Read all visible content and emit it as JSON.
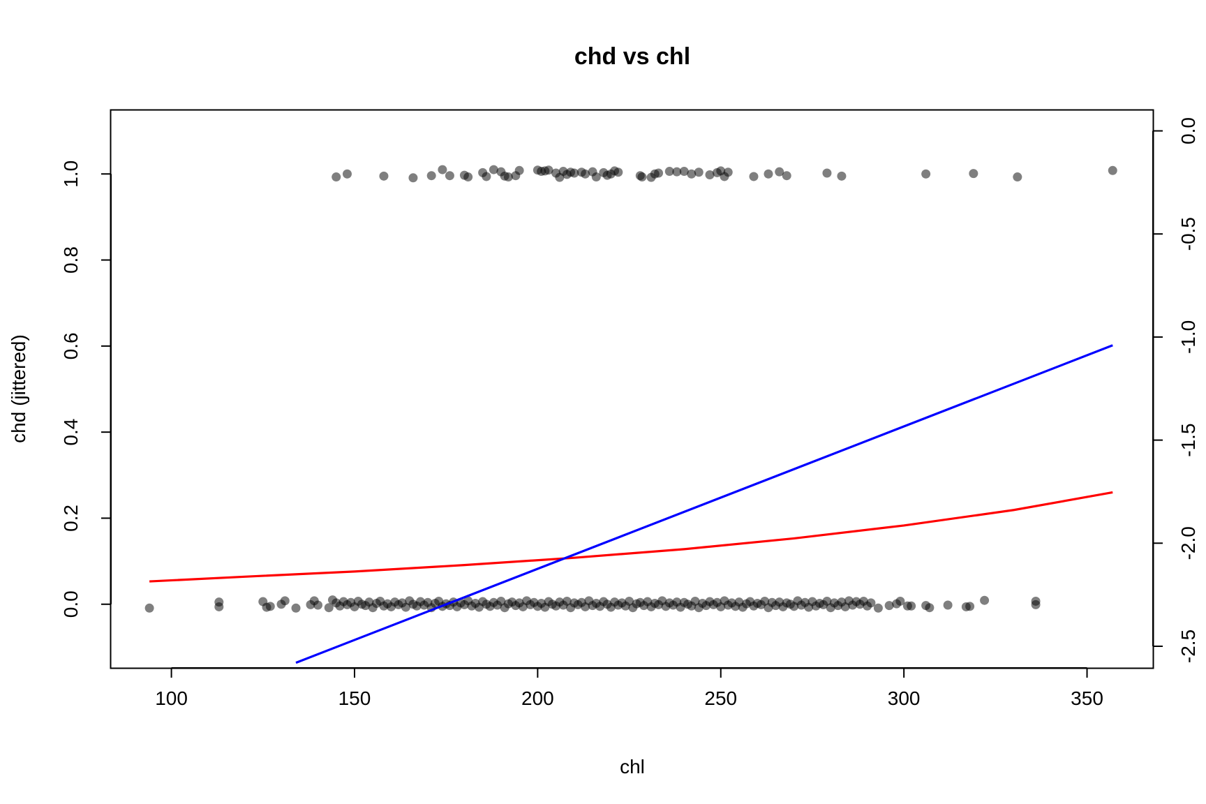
{
  "chart_data": {
    "type": "scatter",
    "title": "chd vs chl",
    "xlabel": "chl",
    "ylabel": "chd (jittered)",
    "xlim": [
      83.5,
      368
    ],
    "ylim": [
      -0.148,
      1.148
    ],
    "y2lim": [
      -2.605,
      0.1
    ],
    "x_ticks": [
      100,
      150,
      200,
      250,
      300,
      350
    ],
    "y_ticks": [
      0.0,
      0.2,
      0.4,
      0.6,
      0.8,
      1.0
    ],
    "y2_ticks": [
      0.0,
      -0.5,
      -1.0,
      -1.5,
      -2.0,
      -2.5
    ],
    "x_tick_labels": [
      "100",
      "150",
      "200",
      "250",
      "300",
      "350"
    ],
    "y_tick_labels": [
      "0.0",
      "0.2",
      "0.4",
      "0.6",
      "0.8",
      "1.0"
    ],
    "y2_tick_labels": [
      "0.0",
      "-0.5",
      "-1.0",
      "-1.5",
      "-2.0",
      "-2.5"
    ],
    "grid": false,
    "point_color": "#000000",
    "point_opacity": 0.5,
    "series": [
      {
        "values": [
          {
            "x": 145,
            "y": 0.993
          },
          {
            "x": 148,
            "y": 1.0
          },
          {
            "x": 158,
            "y": 0.995
          },
          {
            "x": 166,
            "y": 0.991
          },
          {
            "x": 171,
            "y": 0.996
          },
          {
            "x": 174,
            "y": 1.01
          },
          {
            "x": 176,
            "y": 0.996
          },
          {
            "x": 180,
            "y": 0.997
          },
          {
            "x": 181,
            "y": 0.993
          },
          {
            "x": 185,
            "y": 1.003
          },
          {
            "x": 186,
            "y": 0.994
          },
          {
            "x": 188,
            "y": 1.01
          },
          {
            "x": 190,
            "y": 1.005
          },
          {
            "x": 191,
            "y": 0.995
          },
          {
            "x": 192,
            "y": 0.993
          },
          {
            "x": 194,
            "y": 0.996
          },
          {
            "x": 195,
            "y": 1.008
          },
          {
            "x": 200,
            "y": 1.009
          },
          {
            "x": 201,
            "y": 1.006
          },
          {
            "x": 202,
            "y": 1.007
          },
          {
            "x": 203,
            "y": 1.009
          },
          {
            "x": 205,
            "y": 1.002
          },
          {
            "x": 206,
            "y": 0.992
          },
          {
            "x": 207,
            "y": 1.006
          },
          {
            "x": 208,
            "y": 0.999
          },
          {
            "x": 209,
            "y": 1.004
          },
          {
            "x": 210,
            "y": 1.002
          },
          {
            "x": 212,
            "y": 1.004
          },
          {
            "x": 213,
            "y": 1.0
          },
          {
            "x": 215,
            "y": 1.005
          },
          {
            "x": 216,
            "y": 0.993
          },
          {
            "x": 218,
            "y": 1.003
          },
          {
            "x": 219,
            "y": 0.997
          },
          {
            "x": 220,
            "y": 1.0
          },
          {
            "x": 221,
            "y": 1.007
          },
          {
            "x": 222,
            "y": 1.004
          },
          {
            "x": 228,
            "y": 0.996
          },
          {
            "x": 228.5,
            "y": 0.993
          },
          {
            "x": 231,
            "y": 0.992
          },
          {
            "x": 232,
            "y": 1.0
          },
          {
            "x": 233,
            "y": 1.002
          },
          {
            "x": 236,
            "y": 1.006
          },
          {
            "x": 238,
            "y": 1.005
          },
          {
            "x": 240,
            "y": 1.006
          },
          {
            "x": 242,
            "y": 1.0
          },
          {
            "x": 244,
            "y": 1.004
          },
          {
            "x": 247,
            "y": 0.998
          },
          {
            "x": 249,
            "y": 1.003
          },
          {
            "x": 250,
            "y": 1.007
          },
          {
            "x": 251,
            "y": 0.994
          },
          {
            "x": 252,
            "y": 1.004
          },
          {
            "x": 259,
            "y": 0.994
          },
          {
            "x": 263,
            "y": 1.0
          },
          {
            "x": 266,
            "y": 1.005
          },
          {
            "x": 268,
            "y": 0.996
          },
          {
            "x": 279,
            "y": 1.002
          },
          {
            "x": 283,
            "y": 0.995
          },
          {
            "x": 306,
            "y": 1.0
          },
          {
            "x": 319,
            "y": 1.001
          },
          {
            "x": 331,
            "y": 0.993
          },
          {
            "x": 357,
            "y": 1.008
          },
          {
            "x": 94,
            "y": -0.009
          },
          {
            "x": 113,
            "y": 0.005
          },
          {
            "x": 113,
            "y": -0.006
          },
          {
            "x": 125,
            "y": 0.006
          },
          {
            "x": 126,
            "y": -0.007
          },
          {
            "x": 127,
            "y": -0.005
          },
          {
            "x": 130,
            "y": 0.0
          },
          {
            "x": 131,
            "y": 0.008
          },
          {
            "x": 134,
            "y": -0.009
          },
          {
            "x": 138,
            "y": -0.001
          },
          {
            "x": 139,
            "y": 0.008
          },
          {
            "x": 140,
            "y": -0.002
          },
          {
            "x": 143,
            "y": -0.008
          },
          {
            "x": 144,
            "y": 0.01
          },
          {
            "x": 145,
            "y": 0.003
          },
          {
            "x": 146,
            "y": -0.004
          },
          {
            "x": 147,
            "y": 0.006
          },
          {
            "x": 148,
            "y": -0.001
          },
          {
            "x": 149,
            "y": 0.004
          },
          {
            "x": 150,
            "y": -0.006
          },
          {
            "x": 151,
            "y": 0.007
          },
          {
            "x": 152,
            "y": 0.0
          },
          {
            "x": 153,
            "y": -0.003
          },
          {
            "x": 154,
            "y": 0.005
          },
          {
            "x": 155,
            "y": -0.008
          },
          {
            "x": 156,
            "y": 0.002
          },
          {
            "x": 157,
            "y": 0.007
          },
          {
            "x": 158,
            "y": -0.004
          },
          {
            "x": 159,
            "y": 0.001
          },
          {
            "x": 160,
            "y": -0.006
          },
          {
            "x": 161,
            "y": 0.005
          },
          {
            "x": 162,
            "y": -0.001
          },
          {
            "x": 163,
            "y": 0.003
          },
          {
            "x": 164,
            "y": -0.007
          },
          {
            "x": 165,
            "y": 0.008
          },
          {
            "x": 166,
            "y": 0.0
          },
          {
            "x": 167,
            "y": -0.004
          },
          {
            "x": 168,
            "y": 0.006
          },
          {
            "x": 169,
            "y": -0.002
          },
          {
            "x": 170,
            "y": 0.004
          },
          {
            "x": 171,
            "y": -0.008
          },
          {
            "x": 172,
            "y": 0.002
          },
          {
            "x": 173,
            "y": 0.007
          },
          {
            "x": 174,
            "y": -0.005
          },
          {
            "x": 175,
            "y": 0.001
          },
          {
            "x": 176,
            "y": -0.003
          },
          {
            "x": 177,
            "y": 0.005
          },
          {
            "x": 178,
            "y": -0.006
          },
          {
            "x": 179,
            "y": 0.003
          },
          {
            "x": 180,
            "y": -0.001
          },
          {
            "x": 181,
            "y": 0.008
          },
          {
            "x": 182,
            "y": -0.004
          },
          {
            "x": 183,
            "y": 0.002
          },
          {
            "x": 184,
            "y": -0.007
          },
          {
            "x": 185,
            "y": 0.006
          },
          {
            "x": 186,
            "y": 0.0
          },
          {
            "x": 187,
            "y": -0.005
          },
          {
            "x": 188,
            "y": 0.004
          },
          {
            "x": 189,
            "y": -0.002
          },
          {
            "x": 190,
            "y": 0.007
          },
          {
            "x": 191,
            "y": -0.008
          },
          {
            "x": 192,
            "y": 0.001
          },
          {
            "x": 193,
            "y": 0.005
          },
          {
            "x": 194,
            "y": -0.003
          },
          {
            "x": 195,
            "y": 0.003
          },
          {
            "x": 196,
            "y": -0.006
          },
          {
            "x": 197,
            "y": 0.008
          },
          {
            "x": 198,
            "y": -0.001
          },
          {
            "x": 199,
            "y": 0.004
          },
          {
            "x": 200,
            "y": -0.005
          },
          {
            "x": 201,
            "y": 0.002
          },
          {
            "x": 202,
            "y": -0.007
          },
          {
            "x": 203,
            "y": 0.006
          },
          {
            "x": 204,
            "y": 0.0
          },
          {
            "x": 205,
            "y": -0.004
          },
          {
            "x": 206,
            "y": 0.005
          },
          {
            "x": 207,
            "y": -0.002
          },
          {
            "x": 208,
            "y": 0.007
          },
          {
            "x": 209,
            "y": -0.008
          },
          {
            "x": 210,
            "y": 0.003
          },
          {
            "x": 211,
            "y": -0.001
          },
          {
            "x": 212,
            "y": 0.004
          },
          {
            "x": 213,
            "y": -0.006
          },
          {
            "x": 214,
            "y": 0.008
          },
          {
            "x": 215,
            "y": -0.003
          },
          {
            "x": 216,
            "y": 0.002
          },
          {
            "x": 217,
            "y": -0.005
          },
          {
            "x": 218,
            "y": 0.006
          },
          {
            "x": 219,
            "y": 0.0
          },
          {
            "x": 220,
            "y": -0.007
          },
          {
            "x": 221,
            "y": 0.005
          },
          {
            "x": 222,
            "y": -0.002
          },
          {
            "x": 223,
            "y": 0.003
          },
          {
            "x": 224,
            "y": -0.004
          },
          {
            "x": 225,
            "y": 0.007
          },
          {
            "x": 226,
            "y": -0.008
          },
          {
            "x": 227,
            "y": 0.001
          },
          {
            "x": 228,
            "y": 0.004
          },
          {
            "x": 229,
            "y": -0.003
          },
          {
            "x": 230,
            "y": 0.006
          },
          {
            "x": 231,
            "y": -0.006
          },
          {
            "x": 232,
            "y": 0.002
          },
          {
            "x": 233,
            "y": -0.001
          },
          {
            "x": 234,
            "y": 0.008
          },
          {
            "x": 235,
            "y": -0.005
          },
          {
            "x": 236,
            "y": 0.003
          },
          {
            "x": 237,
            "y": -0.002
          },
          {
            "x": 238,
            "y": 0.005
          },
          {
            "x": 239,
            "y": -0.007
          },
          {
            "x": 240,
            "y": 0.004
          },
          {
            "x": 241,
            "y": 0.0
          },
          {
            "x": 242,
            "y": -0.004
          },
          {
            "x": 243,
            "y": 0.007
          },
          {
            "x": 244,
            "y": -0.008
          },
          {
            "x": 245,
            "y": 0.002
          },
          {
            "x": 246,
            "y": -0.003
          },
          {
            "x": 247,
            "y": 0.006
          },
          {
            "x": 248,
            "y": -0.001
          },
          {
            "x": 249,
            "y": 0.004
          },
          {
            "x": 250,
            "y": -0.006
          },
          {
            "x": 251,
            "y": 0.008
          },
          {
            "x": 252,
            "y": -0.002
          },
          {
            "x": 253,
            "y": 0.003
          },
          {
            "x": 254,
            "y": -0.005
          },
          {
            "x": 255,
            "y": 0.005
          },
          {
            "x": 256,
            "y": -0.007
          },
          {
            "x": 257,
            "y": 0.001
          },
          {
            "x": 258,
            "y": 0.006
          },
          {
            "x": 259,
            "y": -0.004
          },
          {
            "x": 260,
            "y": 0.002
          },
          {
            "x": 261,
            "y": -0.001
          },
          {
            "x": 262,
            "y": 0.007
          },
          {
            "x": 263,
            "y": -0.008
          },
          {
            "x": 264,
            "y": 0.004
          },
          {
            "x": 265,
            "y": -0.003
          },
          {
            "x": 266,
            "y": 0.005
          },
          {
            "x": 267,
            "y": -0.006
          },
          {
            "x": 268,
            "y": 0.003
          },
          {
            "x": 269,
            "y": 0.0
          },
          {
            "x": 270,
            "y": -0.005
          },
          {
            "x": 271,
            "y": 0.008
          },
          {
            "x": 272,
            "y": -0.002
          },
          {
            "x": 273,
            "y": 0.004
          },
          {
            "x": 274,
            "y": -0.007
          },
          {
            "x": 275,
            "y": 0.006
          },
          {
            "x": 276,
            "y": -0.004
          },
          {
            "x": 277,
            "y": 0.002
          },
          {
            "x": 278,
            "y": -0.001
          },
          {
            "x": 279,
            "y": 0.007
          },
          {
            "x": 280,
            "y": -0.008
          },
          {
            "x": 281,
            "y": 0.003
          },
          {
            "x": 282,
            "y": -0.003
          },
          {
            "x": 283,
            "y": 0.005
          },
          {
            "x": 284,
            "y": -0.006
          },
          {
            "x": 285,
            "y": 0.008
          },
          {
            "x": 286,
            "y": -0.002
          },
          {
            "x": 287,
            "y": 0.006
          },
          {
            "x": 288,
            "y": 0.0
          },
          {
            "x": 289,
            "y": 0.007
          },
          {
            "x": 290,
            "y": -0.004
          },
          {
            "x": 291,
            "y": 0.003
          },
          {
            "x": 293,
            "y": -0.009
          },
          {
            "x": 296,
            "y": -0.003
          },
          {
            "x": 298,
            "y": 0.001
          },
          {
            "x": 299,
            "y": 0.007
          },
          {
            "x": 301,
            "y": -0.004
          },
          {
            "x": 302,
            "y": -0.004
          },
          {
            "x": 306,
            "y": -0.003
          },
          {
            "x": 307,
            "y": -0.008
          },
          {
            "x": 312,
            "y": -0.002
          },
          {
            "x": 317,
            "y": -0.006
          },
          {
            "x": 318,
            "y": -0.005
          },
          {
            "x": 322,
            "y": 0.009
          },
          {
            "x": 336,
            "y": 0.007
          },
          {
            "x": 336,
            "y": -0.001
          }
        ]
      },
      {
        "type": "line",
        "axis": "y",
        "color": "#ff0000",
        "x": [
          94,
          120,
          150,
          180,
          210,
          240,
          270,
          300,
          330,
          357
        ],
        "y": [
          0.053,
          0.064,
          0.076,
          0.091,
          0.108,
          0.128,
          0.153,
          0.183,
          0.219,
          0.26
        ]
      },
      {
        "type": "line",
        "axis": "y2",
        "color": "#0000ff",
        "x": [
          134,
          357
        ],
        "y": [
          -2.58,
          -1.04
        ]
      }
    ]
  }
}
